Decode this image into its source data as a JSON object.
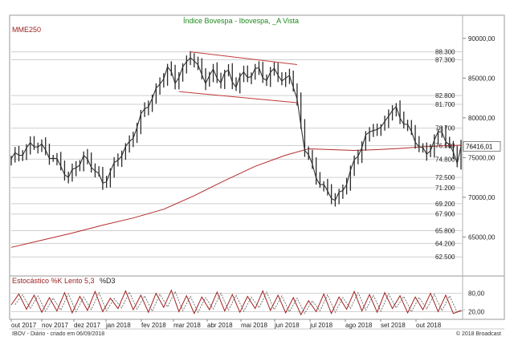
{
  "chart_data": [
    {
      "type": "candlestick",
      "title": "Índice Bovespa - Ibovespa, _A Vista",
      "indicator_label": "MME250",
      "y_axis_labels": [
        "90000,00",
        "85000,00",
        "80000,00",
        "75000,00",
        "70000,00",
        "65000,00"
      ],
      "ylim": [
        60300,
        92000
      ],
      "gridlines": [
        "88.300",
        "87.300",
        "82.800",
        "81.700",
        "78.700",
        "76.500",
        "74.800",
        "72.500",
        "71.200",
        "69.200",
        "67.900",
        "65.800",
        "64.200",
        "62.500"
      ],
      "last_value": "76416,01",
      "x_tick_labels": [
        "out 2017",
        "nov 2017",
        "dez 2017",
        "jan 2018",
        "fev 2018",
        "mar 2018",
        "abr 2018",
        "mai 2018",
        "jun 2018",
        "jul 2018",
        "ago 2018",
        "set 2018",
        "out 2018"
      ],
      "close_series": [
        [
          0,
          74600
        ],
        [
          3,
          75900
        ],
        [
          5,
          76600
        ],
        [
          8,
          76200
        ],
        [
          11,
          75200
        ],
        [
          13,
          73800
        ],
        [
          15,
          72200
        ],
        [
          17,
          74200
        ],
        [
          19,
          75000
        ],
        [
          22,
          73300
        ],
        [
          24,
          72000
        ],
        [
          27,
          73800
        ],
        [
          29,
          75400
        ],
        [
          31,
          77000
        ],
        [
          33,
          79000
        ],
        [
          35,
          80800
        ],
        [
          37,
          82500
        ],
        [
          39,
          84600
        ],
        [
          41,
          86000
        ],
        [
          43,
          84500
        ],
        [
          45,
          86300
        ],
        [
          47,
          88000
        ],
        [
          49,
          86000
        ],
        [
          51,
          84800
        ],
        [
          53,
          86000
        ],
        [
          55,
          84500
        ],
        [
          57,
          85700
        ],
        [
          59,
          84200
        ],
        [
          61,
          85800
        ],
        [
          63,
          84800
        ],
        [
          65,
          86600
        ],
        [
          67,
          84600
        ],
        [
          69,
          86400
        ],
        [
          71,
          84100
        ],
        [
          73,
          86000
        ],
        [
          75,
          82000
        ],
        [
          77,
          76000
        ],
        [
          79,
          74000
        ],
        [
          81,
          72000
        ],
        [
          83,
          70500
        ],
        [
          85,
          69500
        ],
        [
          87,
          71200
        ],
        [
          89,
          73200
        ],
        [
          91,
          75200
        ],
        [
          93,
          77600
        ],
        [
          95,
          79000
        ],
        [
          97,
          78200
        ],
        [
          99,
          80500
        ],
        [
          101,
          81300
        ],
        [
          103,
          79500
        ],
        [
          105,
          77800
        ],
        [
          107,
          76600
        ],
        [
          109,
          75600
        ],
        [
          111,
          76900
        ],
        [
          113,
          78300
        ],
        [
          115,
          76600
        ],
        [
          117,
          74600
        ],
        [
          118,
          76416
        ]
      ],
      "ema_series": [
        [
          0,
          63700
        ],
        [
          8,
          64600
        ],
        [
          16,
          65500
        ],
        [
          24,
          66500
        ],
        [
          32,
          67400
        ],
        [
          40,
          68500
        ],
        [
          48,
          70200
        ],
        [
          56,
          72100
        ],
        [
          64,
          73900
        ],
        [
          72,
          75300
        ],
        [
          78,
          76100
        ],
        [
          84,
          76000
        ],
        [
          90,
          75900
        ],
        [
          96,
          76000
        ],
        [
          102,
          76150
        ],
        [
          108,
          76350
        ],
        [
          114,
          76500
        ],
        [
          118,
          76550
        ]
      ],
      "channel_lines": [
        {
          "from": [
            47,
            88300
          ],
          "to": [
            75,
            86700
          ]
        },
        {
          "from": [
            44,
            83300
          ],
          "to": [
            75,
            81900
          ]
        }
      ]
    },
    {
      "type": "line",
      "title": "Estocástico %K Lento 5,3",
      "secondary_label": "%D3",
      "y_axis_labels": [
        "80,00",
        "20,00"
      ],
      "ylim": [
        0,
        100
      ],
      "k_series": [
        [
          0,
          42
        ],
        [
          2,
          78
        ],
        [
          4,
          28
        ],
        [
          6,
          74
        ],
        [
          8,
          18
        ],
        [
          10,
          66
        ],
        [
          12,
          22
        ],
        [
          14,
          82
        ],
        [
          16,
          16
        ],
        [
          18,
          70
        ],
        [
          20,
          24
        ],
        [
          22,
          86
        ],
        [
          24,
          20
        ],
        [
          26,
          64
        ],
        [
          28,
          30
        ],
        [
          30,
          88
        ],
        [
          32,
          26
        ],
        [
          34,
          74
        ],
        [
          36,
          18
        ],
        [
          38,
          80
        ],
        [
          40,
          34
        ],
        [
          42,
          90
        ],
        [
          44,
          20
        ],
        [
          46,
          72
        ],
        [
          48,
          14
        ],
        [
          50,
          68
        ],
        [
          52,
          26
        ],
        [
          54,
          84
        ],
        [
          56,
          22
        ],
        [
          58,
          76
        ],
        [
          60,
          18
        ],
        [
          62,
          70
        ],
        [
          64,
          30
        ],
        [
          66,
          88
        ],
        [
          68,
          24
        ],
        [
          70,
          74
        ],
        [
          72,
          16
        ],
        [
          74,
          66
        ],
        [
          76,
          10
        ],
        [
          78,
          56
        ],
        [
          80,
          20
        ],
        [
          82,
          78
        ],
        [
          84,
          14
        ],
        [
          86,
          68
        ],
        [
          88,
          28
        ],
        [
          90,
          86
        ],
        [
          92,
          22
        ],
        [
          94,
          76
        ],
        [
          96,
          18
        ],
        [
          98,
          82
        ],
        [
          100,
          30
        ],
        [
          102,
          72
        ],
        [
          104,
          16
        ],
        [
          106,
          68
        ],
        [
          108,
          26
        ],
        [
          110,
          80
        ],
        [
          112,
          20
        ],
        [
          114,
          74
        ],
        [
          116,
          14
        ],
        [
          118,
          24
        ]
      ]
    }
  ],
  "footer": {
    "left": "IBOV - Diário - criado em 06/09/2018",
    "right": "© 2018 Broadcast"
  }
}
